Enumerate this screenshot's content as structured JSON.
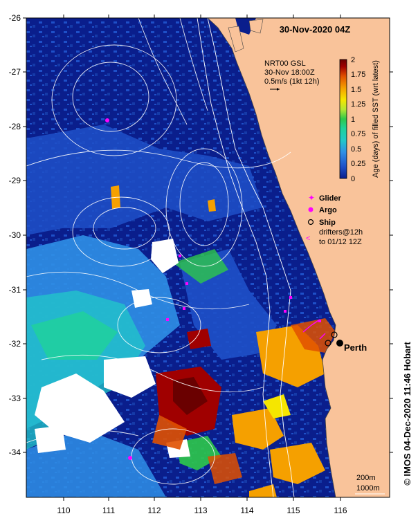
{
  "map": {
    "title": "30-Nov-2020 04Z",
    "lon_ticks": [
      "110",
      "111",
      "112",
      "113",
      "114",
      "115",
      "116"
    ],
    "lat_ticks": [
      "-26",
      "-27",
      "-28",
      "-29",
      "-30",
      "-31",
      "-32",
      "-33",
      "-34"
    ],
    "extent": {
      "lon": [
        109.25,
        116.9
      ],
      "lat": [
        -34.8,
        -26.0
      ]
    },
    "land_color": "#f9c39a",
    "ocean_base_color": "#0a1e8c"
  },
  "gsl": {
    "line1": "NRT00 GSL",
    "line2": "30-Nov 18:00Z",
    "line3": "0.5m/s (1kt 12h)"
  },
  "colorbar": {
    "ticks": [
      "2",
      "1.75",
      "1.5",
      "1.25",
      "1",
      "0.75",
      "0.5",
      "0.25",
      "0"
    ],
    "label": "Age (days) of filled SST (wrt latest)",
    "range": [
      0,
      2
    ],
    "colors": [
      "#0a1e8c",
      "#1e50c8",
      "#2f8fe6",
      "#22c8c8",
      "#1fd29a",
      "#2ec84a",
      "#b4e632",
      "#f5e600",
      "#f5a000",
      "#e05000",
      "#a00000",
      "#6a0000"
    ]
  },
  "legend": {
    "glider": "Glider",
    "argo": "Argo",
    "ship": "Ship",
    "drifters1": "drifters@12h",
    "drifters2": "to 01/12 12Z",
    "glider_color": "#ff00ff",
    "argo_color": "#ff00ff",
    "drifter_color": "#ff00ff"
  },
  "places": {
    "perth": "Perth"
  },
  "depth_contours": {
    "line1": "200m",
    "line2": "1000m"
  },
  "credit": "© IMOS 04-Dec-2020 11:46 Hobart"
}
